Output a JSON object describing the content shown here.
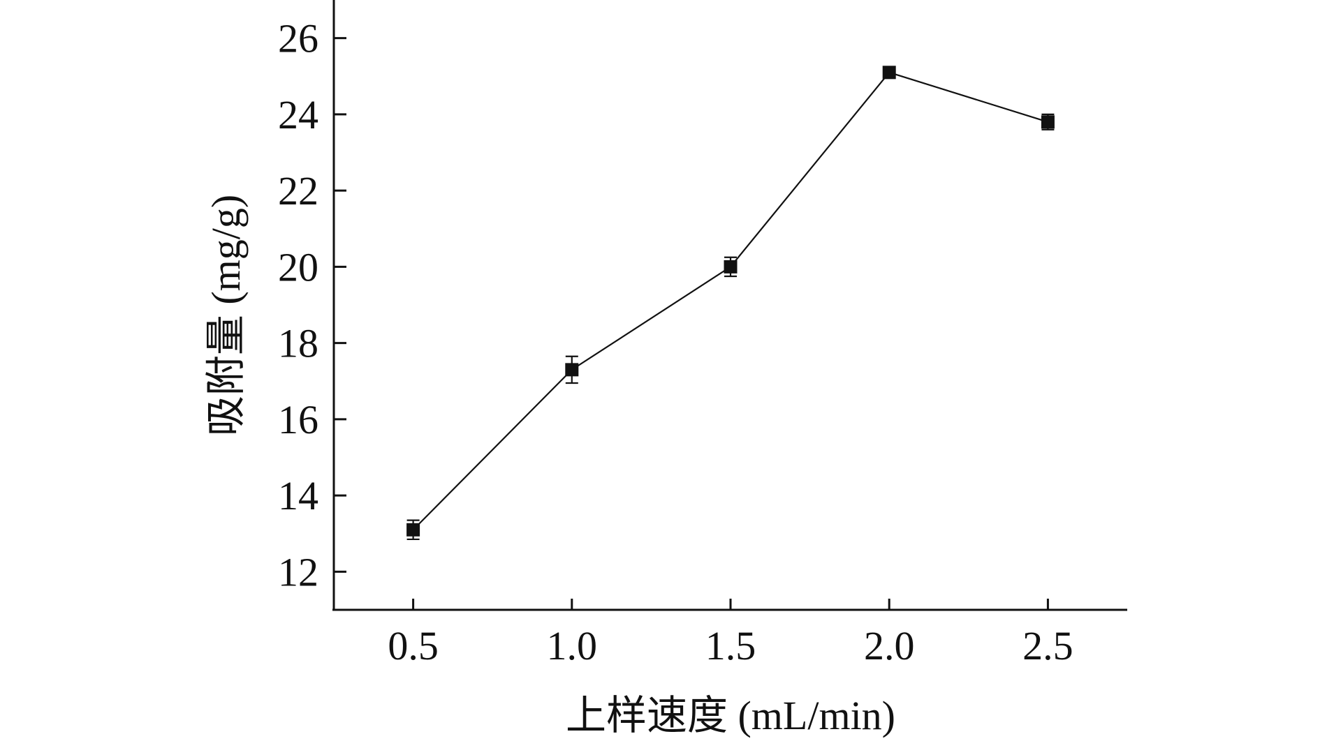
{
  "chart_data": {
    "type": "line",
    "x": [
      0.5,
      1.0,
      1.5,
      2.0,
      2.5
    ],
    "xticks": [
      "0.5",
      "1.0",
      "1.5",
      "2.0",
      "2.5"
    ],
    "xlim": [
      0.25,
      2.75
    ],
    "yticks": [
      "12",
      "14",
      "16",
      "18",
      "20",
      "22",
      "24",
      "26"
    ],
    "ylim": [
      11,
      27
    ],
    "series": [
      {
        "values": [
          13.1,
          17.3,
          20.0,
          25.1,
          23.8
        ],
        "errors": [
          0.25,
          0.35,
          0.25,
          0.15,
          0.2
        ],
        "marker": "square",
        "color": "#111111"
      }
    ],
    "xlabel": "上样速度 (mL/min)",
    "ylabel": "吸附量 (mg/g)",
    "grid": false,
    "legend": "none"
  }
}
